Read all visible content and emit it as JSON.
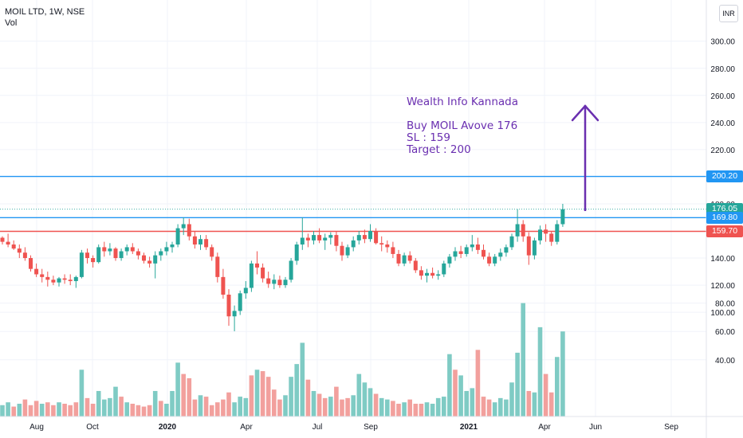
{
  "legend": {
    "symbol": "MOIL LTD, 1W, NSE",
    "indicator": "Vol"
  },
  "currency": "INR",
  "annotation": {
    "title": "Wealth Info Kannada",
    "line1": "Buy  MOIL Avove 176",
    "line2": "SL : 159",
    "line3": "Target : 200"
  },
  "price_labels": [
    {
      "text": "200.20",
      "value": 200.2,
      "color": "#2196f3"
    },
    {
      "text": "176.05",
      "value": 176.05,
      "color": "#26a69a"
    },
    {
      "text": "169.80",
      "value": 169.8,
      "color": "#2196f3"
    },
    {
      "text": "159.70",
      "value": 159.7,
      "color": "#ef5350"
    }
  ],
  "colors": {
    "up": "#26a69a",
    "down": "#ef5350",
    "vol_up": "#7fcbc4",
    "vol_down": "#f2a09d",
    "arrow": "#6a2fb0",
    "grid": "#f0f3fa"
  },
  "chart_data": {
    "type": "candlestick",
    "timeframe": "1W",
    "y_axis_ticks": [
      "300.00",
      "280.00",
      "260.00",
      "240.00",
      "220.00",
      "200.00",
      "180.00",
      "140.00",
      "120.00",
      "100.00",
      "80.00",
      "60.00",
      "40.00"
    ],
    "x_axis_ticks": [
      "Aug",
      "Oct",
      "2020",
      "Apr",
      "Jul",
      "Sep",
      "2021",
      "Apr",
      "Jun",
      "Sep"
    ],
    "horizontal_lines": [
      200.2,
      169.8,
      159.7
    ],
    "candles": [
      [
        155,
        156,
        150,
        152
      ],
      [
        152,
        158,
        148,
        150
      ],
      [
        150,
        153,
        146,
        147
      ],
      [
        147,
        150,
        140,
        144
      ],
      [
        144,
        148,
        138,
        140
      ],
      [
        140,
        142,
        130,
        132
      ],
      [
        132,
        136,
        126,
        128
      ],
      [
        128,
        132,
        122,
        126
      ],
      [
        126,
        130,
        119,
        124
      ],
      [
        124,
        127,
        120,
        122
      ],
      [
        122,
        126,
        119,
        125
      ],
      [
        125,
        128,
        121,
        124
      ],
      [
        124,
        128,
        120,
        123
      ],
      [
        123,
        127,
        118,
        126
      ],
      [
        126,
        146,
        125,
        144
      ],
      [
        144,
        147,
        136,
        140
      ],
      [
        140,
        142,
        133,
        137
      ],
      [
        137,
        150,
        136,
        148
      ],
      [
        148,
        152,
        141,
        145
      ],
      [
        145,
        151,
        142,
        147
      ],
      [
        147,
        148,
        138,
        140
      ],
      [
        140,
        147,
        138,
        145
      ],
      [
        145,
        150,
        142,
        148
      ],
      [
        148,
        151,
        143,
        145
      ],
      [
        145,
        147,
        139,
        142
      ],
      [
        142,
        144,
        136,
        138
      ],
      [
        138,
        141,
        133,
        136
      ],
      [
        136,
        145,
        125,
        142
      ],
      [
        142,
        147,
        138,
        145
      ],
      [
        145,
        152,
        142,
        148
      ],
      [
        148,
        152,
        144,
        150
      ],
      [
        150,
        165,
        148,
        162
      ],
      [
        162,
        170,
        157,
        165
      ],
      [
        165,
        169,
        153,
        156
      ],
      [
        156,
        160,
        147,
        150
      ],
      [
        150,
        157,
        146,
        154
      ],
      [
        154,
        157,
        146,
        148
      ],
      [
        148,
        150,
        138,
        141
      ],
      [
        141,
        144,
        122,
        126
      ],
      [
        126,
        132,
        110,
        113
      ],
      [
        113,
        117,
        90,
        97
      ],
      [
        97,
        105,
        86,
        101
      ],
      [
        101,
        116,
        98,
        114
      ],
      [
        114,
        123,
        110,
        118
      ],
      [
        118,
        138,
        115,
        136
      ],
      [
        136,
        145,
        128,
        133
      ],
      [
        133,
        136,
        122,
        125
      ],
      [
        125,
        130,
        118,
        121
      ],
      [
        121,
        128,
        117,
        124
      ],
      [
        124,
        127,
        118,
        120
      ],
      [
        120,
        126,
        118,
        124
      ],
      [
        124,
        140,
        122,
        138
      ],
      [
        138,
        152,
        135,
        150
      ],
      [
        150,
        170,
        146,
        155
      ],
      [
        155,
        158,
        148,
        153
      ],
      [
        153,
        160,
        150,
        157
      ],
      [
        157,
        162,
        151,
        153
      ],
      [
        153,
        158,
        146,
        155
      ],
      [
        155,
        159,
        150,
        157
      ],
      [
        157,
        160,
        145,
        149
      ],
      [
        149,
        152,
        138,
        142
      ],
      [
        142,
        150,
        140,
        148
      ],
      [
        148,
        156,
        145,
        153
      ],
      [
        153,
        160,
        150,
        157
      ],
      [
        157,
        161,
        151,
        154
      ],
      [
        154,
        165,
        152,
        160
      ],
      [
        160,
        162,
        150,
        151
      ],
      [
        151,
        156,
        145,
        150
      ],
      [
        150,
        153,
        144,
        148
      ],
      [
        148,
        152,
        140,
        143
      ],
      [
        143,
        146,
        134,
        136
      ],
      [
        136,
        144,
        134,
        142
      ],
      [
        142,
        145,
        136,
        138
      ],
      [
        138,
        140,
        129,
        131
      ],
      [
        131,
        134,
        124,
        127
      ],
      [
        127,
        132,
        122,
        129
      ],
      [
        129,
        133,
        125,
        127
      ],
      [
        127,
        131,
        124,
        128
      ],
      [
        128,
        138,
        126,
        136
      ],
      [
        136,
        143,
        133,
        141
      ],
      [
        141,
        148,
        138,
        145
      ],
      [
        145,
        149,
        140,
        143
      ],
      [
        143,
        150,
        141,
        148
      ],
      [
        148,
        157,
        145,
        150
      ],
      [
        150,
        155,
        143,
        146
      ],
      [
        146,
        150,
        139,
        141
      ],
      [
        141,
        144,
        134,
        136
      ],
      [
        136,
        143,
        134,
        141
      ],
      [
        141,
        147,
        138,
        144
      ],
      [
        144,
        150,
        141,
        148
      ],
      [
        148,
        158,
        146,
        156
      ],
      [
        156,
        176,
        152,
        165
      ],
      [
        165,
        168,
        152,
        156
      ],
      [
        156,
        159,
        135,
        142
      ],
      [
        142,
        155,
        139,
        153
      ],
      [
        153,
        164,
        150,
        161
      ],
      [
        161,
        165,
        152,
        158
      ],
      [
        158,
        160,
        149,
        152
      ],
      [
        152,
        168,
        150,
        165
      ],
      [
        165,
        180,
        163,
        176
      ]
    ],
    "volume": [
      [
        8,
        1
      ],
      [
        10,
        1
      ],
      [
        7,
        0
      ],
      [
        9,
        1
      ],
      [
        12,
        0
      ],
      [
        8,
        0
      ],
      [
        11,
        0
      ],
      [
        9,
        1
      ],
      [
        10,
        0
      ],
      [
        8,
        0
      ],
      [
        10,
        1
      ],
      [
        9,
        0
      ],
      [
        8,
        0
      ],
      [
        10,
        0
      ],
      [
        33,
        1
      ],
      [
        13,
        0
      ],
      [
        9,
        0
      ],
      [
        18,
        1
      ],
      [
        12,
        1
      ],
      [
        13,
        1
      ],
      [
        21,
        1
      ],
      [
        14,
        0
      ],
      [
        10,
        1
      ],
      [
        9,
        0
      ],
      [
        8,
        0
      ],
      [
        7,
        0
      ],
      [
        8,
        0
      ],
      [
        18,
        1
      ],
      [
        11,
        0
      ],
      [
        9,
        1
      ],
      [
        18,
        1
      ],
      [
        38,
        1
      ],
      [
        30,
        0
      ],
      [
        27,
        0
      ],
      [
        12,
        0
      ],
      [
        15,
        1
      ],
      [
        14,
        0
      ],
      [
        8,
        0
      ],
      [
        10,
        0
      ],
      [
        12,
        0
      ],
      [
        17,
        0
      ],
      [
        10,
        1
      ],
      [
        14,
        1
      ],
      [
        13,
        1
      ],
      [
        29,
        0
      ],
      [
        33,
        1
      ],
      [
        32,
        0
      ],
      [
        28,
        0
      ],
      [
        19,
        0
      ],
      [
        12,
        0
      ],
      [
        15,
        1
      ],
      [
        28,
        1
      ],
      [
        37,
        1
      ],
      [
        52,
        1
      ],
      [
        26,
        0
      ],
      [
        18,
        1
      ],
      [
        16,
        0
      ],
      [
        13,
        0
      ],
      [
        14,
        1
      ],
      [
        21,
        0
      ],
      [
        12,
        0
      ],
      [
        13,
        0
      ],
      [
        15,
        1
      ],
      [
        30,
        1
      ],
      [
        24,
        1
      ],
      [
        20,
        1
      ],
      [
        16,
        0
      ],
      [
        13,
        1
      ],
      [
        12,
        1
      ],
      [
        11,
        0
      ],
      [
        9,
        0
      ],
      [
        10,
        1
      ],
      [
        12,
        0
      ],
      [
        9,
        0
      ],
      [
        9,
        0
      ],
      [
        10,
        1
      ],
      [
        9,
        1
      ],
      [
        13,
        1
      ],
      [
        14,
        1
      ],
      [
        44,
        1
      ],
      [
        33,
        0
      ],
      [
        29,
        1
      ],
      [
        18,
        1
      ],
      [
        20,
        1
      ],
      [
        47,
        0
      ],
      [
        14,
        0
      ],
      [
        12,
        0
      ],
      [
        10,
        1
      ],
      [
        13,
        1
      ],
      [
        12,
        1
      ],
      [
        24,
        1
      ],
      [
        45,
        1
      ],
      [
        80,
        1
      ],
      [
        18,
        0
      ],
      [
        17,
        1
      ],
      [
        63,
        1
      ],
      [
        30,
        0
      ],
      [
        17,
        0
      ],
      [
        42,
        1
      ],
      [
        60,
        1
      ]
    ]
  }
}
